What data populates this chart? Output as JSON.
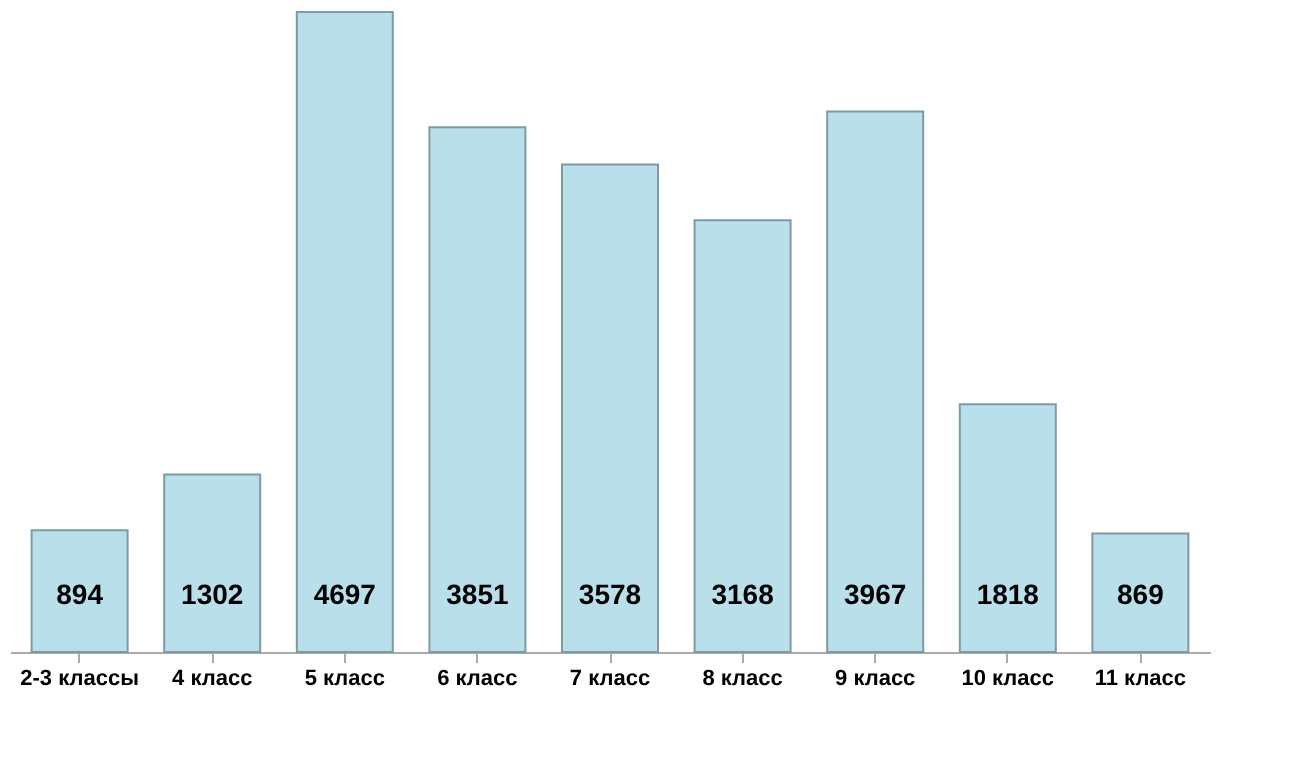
{
  "chart_data": {
    "type": "bar",
    "categories": [
      "2-3 классы",
      "4 класс",
      "5 класс",
      "6 класс",
      "7 класс",
      "8 класс",
      "9 класс",
      "10 класс",
      "11 класс"
    ],
    "values": [
      894,
      1302,
      4697,
      3851,
      3578,
      3168,
      3967,
      1818,
      869
    ],
    "color": "#b9dfea",
    "data_labels": true,
    "grid": false
  }
}
